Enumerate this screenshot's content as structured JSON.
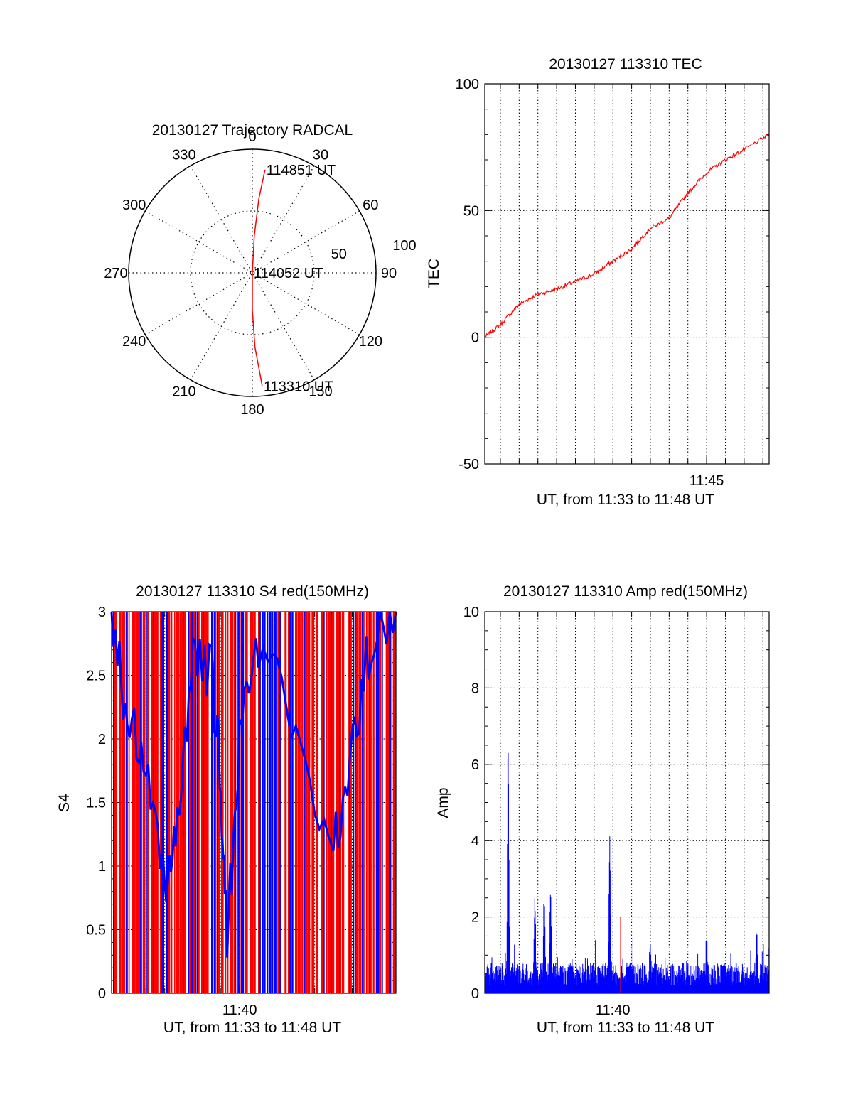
{
  "colors": {
    "primary": "#ff0000",
    "secondary": "#0000ff",
    "axis": "#000000"
  },
  "chart_data": [
    {
      "id": "trajectory",
      "type": "polar",
      "title": "20130127 Trajectory RADCAL",
      "angle_labels": [
        "0",
        "30",
        "60",
        "90",
        "120",
        "150",
        "180",
        "210",
        "240",
        "270",
        "300",
        "330"
      ],
      "radius_labels": [
        "50",
        "100"
      ],
      "radius_range": [
        0,
        100
      ],
      "grid": true,
      "series": [
        {
          "color": "#ff0000",
          "points": [
            [
              175,
              92
            ],
            [
              178,
              60
            ],
            [
              180,
              30
            ],
            [
              0,
              0
            ],
            [
              3,
              30
            ],
            [
              5,
              60
            ],
            [
              7,
              84
            ]
          ]
        }
      ],
      "annotations": [
        {
          "text": "114851 UT",
          "angle": 7,
          "radius": 84
        },
        {
          "text": "114052 UT",
          "angle": 0,
          "radius": 0
        },
        {
          "text": "113310 UT",
          "angle": 175,
          "radius": 92
        }
      ]
    },
    {
      "id": "tec",
      "type": "line",
      "title": "20130127 113310 TEC",
      "xlabel": "UT, from 11:33 to 11:48 UT",
      "ylabel": "TEC",
      "xlim": [
        "11:33:10",
        "11:48:20"
      ],
      "ylim": [
        -50,
        100
      ],
      "x_ticks": [
        "11:45"
      ],
      "y_ticks": [
        -50,
        0,
        50,
        100
      ],
      "grid": true,
      "series": [
        {
          "color": "#ff0000",
          "points": [
            [
              "11:33:10",
              0
            ],
            [
              "11:34:00",
              5
            ],
            [
              "11:35:00",
              13
            ],
            [
              "11:36:00",
              17
            ],
            [
              "11:37:00",
              19
            ],
            [
              "11:38:00",
              22
            ],
            [
              "11:39:00",
              25
            ],
            [
              "11:40:00",
              30
            ],
            [
              "11:41:00",
              35
            ],
            [
              "11:42:00",
              43
            ],
            [
              "11:43:00",
              47
            ],
            [
              "11:44:00",
              57
            ],
            [
              "11:45:00",
              65
            ],
            [
              "11:46:00",
              70
            ],
            [
              "11:47:00",
              74
            ],
            [
              "11:48:20",
              80
            ]
          ]
        }
      ]
    },
    {
      "id": "s4",
      "type": "line",
      "title": "20130127 113310 S4 red(150MHz)",
      "xlabel": "UT, from 11:33 to 11:48 UT",
      "ylabel": "S4",
      "xlim": [
        "11:33:10",
        "11:48:20"
      ],
      "ylim": [
        0,
        3
      ],
      "x_ticks": [
        "11:40"
      ],
      "y_ticks": [
        "0",
        "0.5",
        "1",
        "1.5",
        "2",
        "2.5",
        "3"
      ],
      "grid": true,
      "series": [
        {
          "color": "#ff0000",
          "description": "dense oscillation spanning the full 0 to 3 range"
        },
        {
          "color": "#0000ff",
          "description": "dense oscillation with dips near 11:36 (~0.8) and 11:40 (~0.4)"
        }
      ]
    },
    {
      "id": "amp",
      "type": "line",
      "title": "20130127 113310 Amp red(150MHz)",
      "xlabel": "UT, from 11:33 to 11:48 UT",
      "ylabel": "Amp",
      "xlim": [
        "11:33:10",
        "11:48:20"
      ],
      "ylim": [
        0,
        10
      ],
      "x_ticks": [
        "11:40"
      ],
      "y_ticks": [
        0,
        2,
        4,
        6,
        8,
        10
      ],
      "grid": true,
      "series": [
        {
          "color": "#0000ff",
          "baseline": 0.5,
          "spikes": [
            [
              "11:34:25",
              7.5
            ],
            [
              "11:35:50",
              3.0
            ],
            [
              "11:36:20",
              3.1
            ],
            [
              "11:36:40",
              2.9
            ],
            [
              "11:39:50",
              4.4
            ],
            [
              "11:42:00",
              1.5
            ],
            [
              "11:45:00",
              1.6
            ],
            [
              "11:47:40",
              1.8
            ]
          ]
        },
        {
          "color": "#ff0000",
          "spikes": [
            [
              "11:40:25",
              2.0
            ]
          ]
        }
      ]
    }
  ]
}
